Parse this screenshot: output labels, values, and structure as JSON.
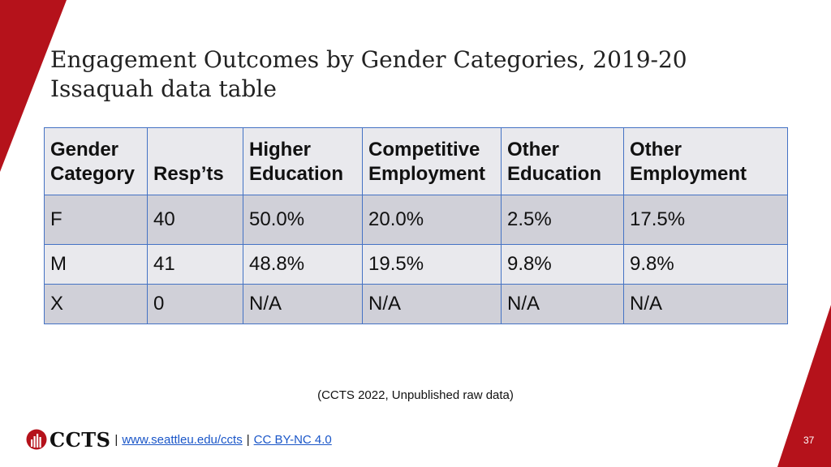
{
  "title": {
    "line1": "Engagement Outcomes by Gender Categories, 2019-20",
    "line2": "Issaquah data table"
  },
  "table": {
    "headers": [
      [
        "Gender",
        "Category"
      ],
      [
        "",
        "Resp’ts"
      ],
      [
        "Higher",
        "Education"
      ],
      [
        "Competitive",
        "Employment"
      ],
      [
        "Other",
        "Education"
      ],
      [
        "Other",
        "Employment"
      ]
    ],
    "rows": [
      [
        "F",
        "40",
        "50.0%",
        "20.0%",
        "2.5%",
        "17.5%"
      ],
      [
        "M",
        "41",
        "48.8%",
        "19.5%",
        "9.8%",
        "9.8%"
      ],
      [
        "X",
        "0",
        "N/A",
        "N/A",
        "N/A",
        "N/A"
      ]
    ]
  },
  "source_note": "(CCTS 2022, Unpublished raw data)",
  "footer": {
    "logo_text": "CCTS",
    "separator": "|",
    "link1": "www.seattleu.edu/ccts",
    "link2": "CC BY-NC 4.0"
  },
  "page_number": "37",
  "colors": {
    "accent_red": "#b5121b",
    "table_border": "#4472c4",
    "link": "#1a56c8"
  }
}
